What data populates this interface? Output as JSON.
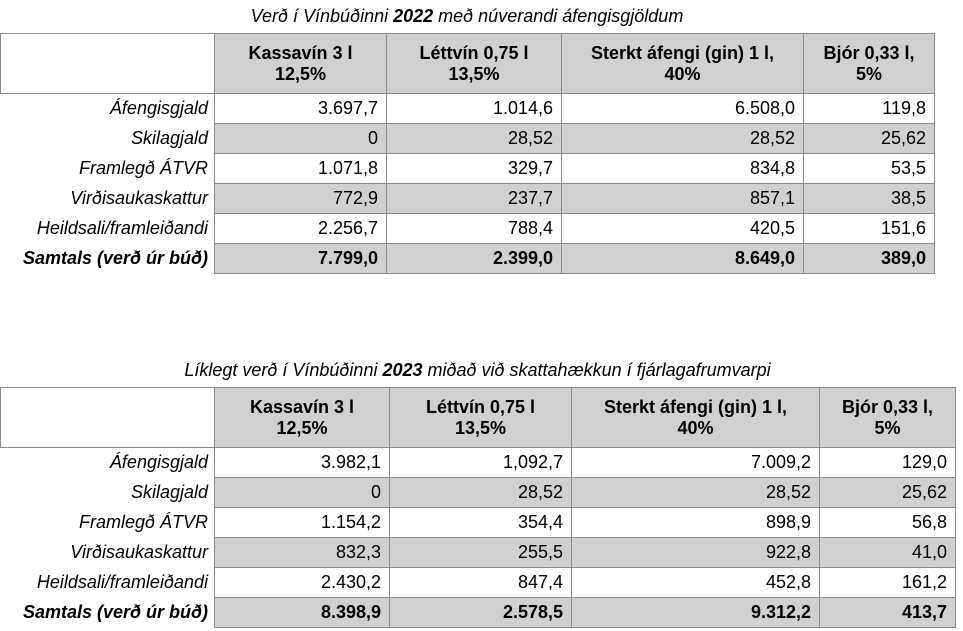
{
  "table1": {
    "caption_pre": "Verð í Vínbúðinni ",
    "caption_year": "2022",
    "caption_post": " með núverandi áfengisgjöldum",
    "headers": [
      [
        "Kassavín 3 l",
        "12,5%"
      ],
      [
        "Léttvín 0,75 l",
        "13,5%"
      ],
      [
        "Sterkt áfengi (gin) 1 l,",
        "40%"
      ],
      [
        "Bjór 0,33 l,",
        "5%"
      ]
    ],
    "rows": [
      {
        "label": "Áfengisgjald",
        "values": [
          "3.697,7",
          "1.014,6",
          "6.508,0",
          "119,8"
        ]
      },
      {
        "label": "Skilagjald",
        "values": [
          "0",
          "28,52",
          "28,52",
          "25,62"
        ]
      },
      {
        "label": "Framlegð ÁTVR",
        "values": [
          "1.071,8",
          "329,7",
          "834,8",
          "53,5"
        ]
      },
      {
        "label": "Virðisaukaskattur",
        "values": [
          "772,9",
          "237,7",
          "857,1",
          "38,5"
        ]
      },
      {
        "label": "Heildsali/framleiðandi",
        "values": [
          "2.256,7",
          "788,4",
          "420,5",
          "151,6"
        ]
      },
      {
        "label": "Samtals (verð úr búð)",
        "values": [
          "7.799,0",
          "2.399,0",
          "8.649,0",
          "389,0"
        ]
      }
    ]
  },
  "table2": {
    "caption_pre": "Líklegt verð í Vínbúðinni ",
    "caption_year": "2023",
    "caption_post": " miðað við skattahækkun í fjárlagafrumvarpi",
    "headers": [
      [
        "Kassavín 3 l",
        "12,5%"
      ],
      [
        "Léttvín 0,75 l",
        "13,5%"
      ],
      [
        "Sterkt áfengi (gin) 1 l,",
        "40%"
      ],
      [
        "Bjór 0,33 l,",
        "5%"
      ]
    ],
    "rows": [
      {
        "label": "Áfengisgjald",
        "values": [
          "3.982,1",
          "1,092,7",
          "7.009,2",
          "129,0"
        ]
      },
      {
        "label": "Skilagjald",
        "values": [
          "0",
          "28,52",
          "28,52",
          "25,62"
        ]
      },
      {
        "label": "Framlegð ÁTVR",
        "values": [
          "1.154,2",
          "354,4",
          "898,9",
          "56,8"
        ]
      },
      {
        "label": "Virðisaukaskattur",
        "values": [
          "832,3",
          "255,5",
          "922,8",
          "41,0"
        ]
      },
      {
        "label": "Heildsali/framleiðandi",
        "values": [
          "2.430,2",
          "847,4",
          "452,8",
          "161,2"
        ]
      },
      {
        "label": "Samtals (verð úr búð)",
        "values": [
          "8.398,9",
          "2.578,5",
          "9.312,2",
          "413,7"
        ]
      }
    ]
  }
}
